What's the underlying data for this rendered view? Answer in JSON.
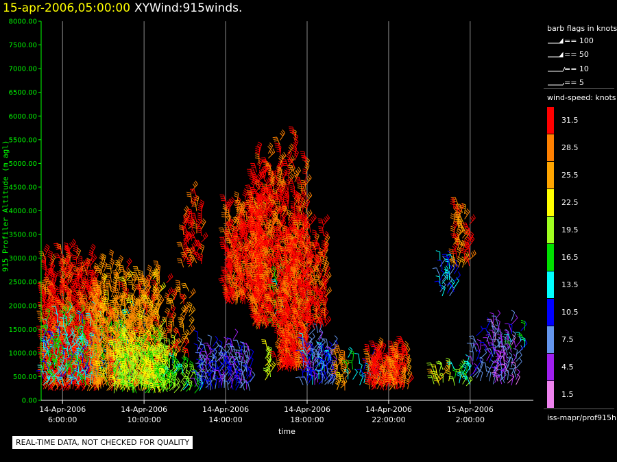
{
  "header": {
    "datetime": "15-apr-2006,05:00:00",
    "product": "XYWind:915winds."
  },
  "legend": {
    "flags_title": "barb flags in knots",
    "flags": [
      {
        "value": "== 100",
        "kind": "pennant"
      },
      {
        "value": "== 50",
        "kind": "pennant"
      },
      {
        "value": "== 10",
        "kind": "full-barb"
      },
      {
        "value": "== 5",
        "kind": "half-barb"
      }
    ],
    "speed_title": "wind-speed: knots",
    "speed_scale": [
      {
        "label": "31.5",
        "color": "#ff0000"
      },
      {
        "label": "28.5",
        "color": "#ff8000"
      },
      {
        "label": "25.5",
        "color": "#ffa500"
      },
      {
        "label": "22.5",
        "color": "#ffff00"
      },
      {
        "label": "19.5",
        "color": "#a0ff20"
      },
      {
        "label": "16.5",
        "color": "#00e000"
      },
      {
        "label": "13.5",
        "color": "#00ffff"
      },
      {
        "label": "10.5",
        "color": "#0000ff"
      },
      {
        "label": "7.5",
        "color": "#6495ed"
      },
      {
        "label": "4.5",
        "color": "#a020f0"
      },
      {
        "label": "1.5",
        "color": "#ee82ee"
      }
    ],
    "source": "iss-mapr/prof915h"
  },
  "footer": {
    "qc_notice": "REAL-TIME DATA, NOT CHECKED FOR QUALITY"
  },
  "chart_data": {
    "type": "scatter",
    "xlabel": "time",
    "ylabel": "915 Profiler Altitude (m agl)",
    "ylim": [
      0,
      8000
    ],
    "y_ticks": [
      "0.00",
      "500.00",
      "1000.00",
      "1500.00",
      "2000.00",
      "2500.00",
      "3000.00",
      "3500.00",
      "4000.00",
      "4500.00",
      "5000.00",
      "5500.00",
      "6000.00",
      "6500.00",
      "7000.00",
      "7500.00",
      "8000.00"
    ],
    "x_hours_range": [
      4.95,
      29.1
    ],
    "x_ticks": [
      {
        "hour": 6,
        "date": "14-Apr-2006",
        "time": "6:00:00"
      },
      {
        "hour": 10,
        "date": "14-Apr-2006",
        "time": "10:00:00"
      },
      {
        "hour": 14,
        "date": "14-Apr-2006",
        "time": "14:00:00"
      },
      {
        "hour": 18,
        "date": "14-Apr-2006",
        "time": "18:00:00"
      },
      {
        "hour": 22,
        "date": "14-Apr-2006",
        "time": "22:00:00"
      },
      {
        "hour": 26,
        "date": "15-Apr-2006",
        "time": "2:00:00"
      }
    ],
    "grid": "vertical at x ticks",
    "series_kind": "wind barbs colored by speed (knots)",
    "clusters": [
      {
        "t0": 5.0,
        "t1": 7.8,
        "zmin": 200,
        "zmax": 3300,
        "speed": 31,
        "dense": 1.0
      },
      {
        "t0": 5.0,
        "t1": 9.5,
        "zmin": 300,
        "zmax": 2000,
        "speed": 14,
        "dense": 0.7
      },
      {
        "t0": 7.5,
        "t1": 10.8,
        "zmin": 200,
        "zmax": 3000,
        "speed": 27,
        "dense": 0.9
      },
      {
        "t0": 8.5,
        "t1": 11.5,
        "zmin": 150,
        "zmax": 1600,
        "speed": 20,
        "dense": 0.9
      },
      {
        "t0": 10.5,
        "t1": 12.8,
        "zmin": 150,
        "zmax": 900,
        "speed": 17,
        "dense": 0.6
      },
      {
        "t0": 11.0,
        "t1": 12.3,
        "zmin": 900,
        "zmax": 2800,
        "speed": 28,
        "dense": 0.5
      },
      {
        "t0": 11.9,
        "t1": 12.9,
        "zmin": 2800,
        "zmax": 4700,
        "speed": 31,
        "dense": 0.6
      },
      {
        "t0": 12.5,
        "t1": 15.3,
        "zmin": 200,
        "zmax": 1400,
        "speed": 8,
        "dense": 0.8
      },
      {
        "t0": 14.0,
        "t1": 15.8,
        "zmin": 2000,
        "zmax": 4300,
        "speed": 31,
        "dense": 1.0
      },
      {
        "t0": 15.3,
        "t1": 16.4,
        "zmin": 1500,
        "zmax": 5300,
        "speed": 31,
        "dense": 1.0
      },
      {
        "t0": 15.8,
        "t1": 16.4,
        "zmin": 400,
        "zmax": 1200,
        "speed": 21,
        "dense": 0.6
      },
      {
        "t0": 16.3,
        "t1": 17.0,
        "zmin": 1500,
        "zmax": 3200,
        "speed": 16,
        "dense": 0.4
      },
      {
        "t0": 16.5,
        "t1": 18.0,
        "zmin": 600,
        "zmax": 5700,
        "speed": 31,
        "dense": 1.0
      },
      {
        "t0": 17.8,
        "t1": 19.3,
        "zmin": 300,
        "zmax": 1500,
        "speed": 9,
        "dense": 0.9
      },
      {
        "t0": 18.0,
        "t1": 19.0,
        "zmin": 1500,
        "zmax": 4000,
        "speed": 31,
        "dense": 0.8
      },
      {
        "t0": 19.4,
        "t1": 20.0,
        "zmin": 200,
        "zmax": 1500,
        "speed": 27,
        "dense": 0.6
      },
      {
        "t0": 20.0,
        "t1": 21.5,
        "zmin": 300,
        "zmax": 1100,
        "speed": 14,
        "dense": 0.5
      },
      {
        "t0": 21.0,
        "t1": 22.5,
        "zmin": 200,
        "zmax": 1200,
        "speed": 31,
        "dense": 1.0
      },
      {
        "t0": 22.2,
        "t1": 23.0,
        "zmin": 200,
        "zmax": 1500,
        "speed": 29,
        "dense": 0.8
      },
      {
        "t0": 24.1,
        "t1": 25.0,
        "zmin": 300,
        "zmax": 900,
        "speed": 22,
        "dense": 0.6
      },
      {
        "t0": 25.2,
        "t1": 25.9,
        "zmin": 300,
        "zmax": 900,
        "speed": 17,
        "dense": 0.6
      },
      {
        "t0": 25.8,
        "t1": 26.1,
        "zmin": 300,
        "zmax": 900,
        "speed": 14,
        "dense": 0.4
      },
      {
        "t0": 26.0,
        "t1": 27.5,
        "zmin": 400,
        "zmax": 1700,
        "speed": 8,
        "dense": 0.5
      },
      {
        "t0": 27.0,
        "t1": 28.3,
        "zmin": 300,
        "zmax": 1900,
        "speed": 5,
        "dense": 0.7
      },
      {
        "t0": 28.0,
        "t1": 29.0,
        "zmin": 1000,
        "zmax": 1600,
        "speed": 14,
        "dense": 0.3
      },
      {
        "t0": 24.4,
        "t1": 25.3,
        "zmin": 2200,
        "zmax": 3300,
        "speed": 11,
        "dense": 0.6
      },
      {
        "t0": 25.1,
        "t1": 26.0,
        "zmin": 2800,
        "zmax": 4200,
        "speed": 29,
        "dense": 0.7
      }
    ]
  }
}
